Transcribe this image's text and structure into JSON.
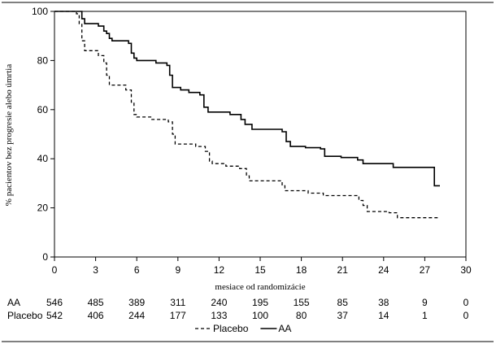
{
  "chart_data": {
    "type": "line",
    "subtype": "kaplan-meier step curve",
    "xlabel": "mesiace od randomizácie",
    "ylabel": "% pacientov bez progresie alebo úmrtia",
    "xlim": [
      0,
      30
    ],
    "ylim": [
      0,
      100
    ],
    "xticks": [
      0,
      3,
      6,
      9,
      12,
      15,
      18,
      21,
      24,
      27,
      30
    ],
    "yticks": [
      0,
      20,
      40,
      60,
      80,
      100
    ],
    "series": [
      {
        "name": "AA",
        "style": "solid",
        "color": "#000000",
        "points": [
          [
            0,
            100
          ],
          [
            1.8,
            100
          ],
          [
            2.0,
            97
          ],
          [
            2.2,
            95
          ],
          [
            3.2,
            94
          ],
          [
            3.6,
            92
          ],
          [
            3.8,
            91
          ],
          [
            4.0,
            89
          ],
          [
            4.2,
            88
          ],
          [
            5.4,
            87
          ],
          [
            5.6,
            83
          ],
          [
            5.8,
            81
          ],
          [
            6.0,
            80
          ],
          [
            7.4,
            79
          ],
          [
            8.2,
            78
          ],
          [
            8.4,
            74
          ],
          [
            8.6,
            69
          ],
          [
            9.2,
            68
          ],
          [
            9.8,
            67
          ],
          [
            10.6,
            66
          ],
          [
            10.9,
            61
          ],
          [
            11.2,
            59
          ],
          [
            12.8,
            58
          ],
          [
            13.6,
            56
          ],
          [
            13.9,
            54
          ],
          [
            14.4,
            52
          ],
          [
            16.6,
            51
          ],
          [
            16.9,
            47
          ],
          [
            17.2,
            45
          ],
          [
            18.3,
            44.5
          ],
          [
            19.4,
            44
          ],
          [
            19.7,
            41
          ],
          [
            20.9,
            40.5
          ],
          [
            22.1,
            39.5
          ],
          [
            22.5,
            38
          ],
          [
            24.7,
            36.5
          ],
          [
            27.6,
            36.5
          ],
          [
            27.7,
            29
          ],
          [
            28.1,
            29
          ]
        ]
      },
      {
        "name": "Placebo",
        "style": "dashed",
        "color": "#000000",
        "points": [
          [
            0,
            100
          ],
          [
            1.6,
            99
          ],
          [
            1.8,
            95
          ],
          [
            2.0,
            88
          ],
          [
            2.2,
            84
          ],
          [
            3.2,
            82
          ],
          [
            3.6,
            79
          ],
          [
            3.8,
            74
          ],
          [
            4.0,
            70
          ],
          [
            5.2,
            68
          ],
          [
            5.6,
            63
          ],
          [
            5.8,
            58
          ],
          [
            6.0,
            57
          ],
          [
            7.1,
            56
          ],
          [
            8.3,
            55
          ],
          [
            8.6,
            50
          ],
          [
            8.8,
            46
          ],
          [
            10.3,
            45
          ],
          [
            11.0,
            43
          ],
          [
            11.3,
            39
          ],
          [
            11.5,
            38
          ],
          [
            12.5,
            37
          ],
          [
            13.5,
            36
          ],
          [
            14.0,
            33
          ],
          [
            14.2,
            31
          ],
          [
            16.0,
            31
          ],
          [
            16.6,
            29
          ],
          [
            16.8,
            27
          ],
          [
            18.5,
            26
          ],
          [
            19.6,
            25
          ],
          [
            21.5,
            25
          ],
          [
            22.2,
            23
          ],
          [
            22.5,
            21
          ],
          [
            22.8,
            18.5
          ],
          [
            24.4,
            18
          ],
          [
            25.0,
            16
          ],
          [
            28.1,
            16
          ]
        ]
      }
    ],
    "risk_table": {
      "x": [
        0,
        3,
        6,
        9,
        12,
        15,
        18,
        21,
        24,
        27,
        30
      ],
      "rows": [
        {
          "label": "AA",
          "values": [
            "546",
            "485",
            "389",
            "311",
            "240",
            "195",
            "155",
            "85",
            "38",
            "9",
            "0"
          ]
        },
        {
          "label": "Placebo",
          "values": [
            "542",
            "406",
            "244",
            "177",
            "133",
            "100",
            "80",
            "37",
            "14",
            "1",
            "0"
          ]
        }
      ]
    },
    "legend": {
      "position": "bottom-center",
      "entries": [
        {
          "label": "Placebo",
          "style": "dashed"
        },
        {
          "label": "AA",
          "style": "solid"
        }
      ]
    },
    "grid": false
  }
}
